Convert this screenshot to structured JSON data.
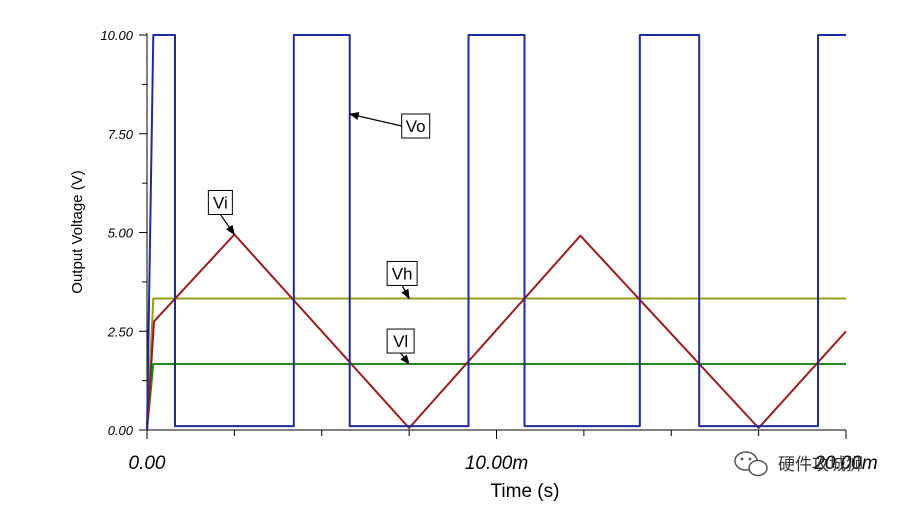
{
  "chart_data": {
    "type": "line",
    "xlabel": "Time (s)",
    "ylabel": "Output Voltage (V)",
    "xlim": [
      0,
      0.02
    ],
    "ylim": [
      0,
      10
    ],
    "x_ticks": [
      {
        "value": 0,
        "label": "0.00"
      },
      {
        "value": 0.01,
        "label": "10.00m"
      },
      {
        "value": 0.02,
        "label": "20.00m"
      }
    ],
    "y_ticks": [
      {
        "value": 0,
        "label": "0.00"
      },
      {
        "value": 2.5,
        "label": "2.50"
      },
      {
        "value": 5,
        "label": "5.00"
      },
      {
        "value": 7.5,
        "label": "7.50"
      },
      {
        "value": 10,
        "label": "10.00"
      }
    ],
    "series": [
      {
        "name": "Vo",
        "color": "#1f2a9e",
        "x": [
          0,
          0.00018,
          0.0008,
          0.0008,
          0.0042,
          0.0042,
          0.0058,
          0.0058,
          0.0092,
          0.0092,
          0.0108,
          0.0108,
          0.0141,
          0.0141,
          0.0158,
          0.0158,
          0.0192,
          0.0192,
          0.02
        ],
        "y": [
          0,
          10,
          10,
          0.1,
          0.1,
          10,
          10,
          0.1,
          0.1,
          10,
          10,
          0.1,
          0.1,
          10,
          10,
          0.1,
          0.1,
          10,
          10
        ]
      },
      {
        "name": "Vi",
        "color": "#9b1c1c",
        "x": [
          0,
          0.0002,
          0.0025,
          0.0075,
          0.0124,
          0.0175,
          0.02
        ],
        "y": [
          0,
          2.75,
          4.95,
          0.05,
          4.92,
          0.05,
          2.5
        ]
      },
      {
        "name": "Vh",
        "color": "#9a9a1e",
        "x": [
          0,
          0.00018,
          0.02
        ],
        "y": [
          0,
          3.33,
          3.33
        ]
      },
      {
        "name": "Vl",
        "color": "#1e8a1e",
        "x": [
          0,
          0.00018,
          0.02
        ],
        "y": [
          0,
          1.67,
          1.67
        ]
      }
    ],
    "annotations": [
      {
        "text": "Vo",
        "target_x": 0.0058,
        "target_y": 8.0
      },
      {
        "text": "Vi",
        "target_x": 0.0025,
        "target_y": 4.95
      },
      {
        "text": "Vh",
        "target_x": 0.0075,
        "target_y": 3.33
      },
      {
        "text": "Vl",
        "target_x": 0.0075,
        "target_y": 1.67
      }
    ],
    "grid": false
  },
  "watermark": {
    "icon": "wechat-icon",
    "text": "硬件攻城狮"
  }
}
